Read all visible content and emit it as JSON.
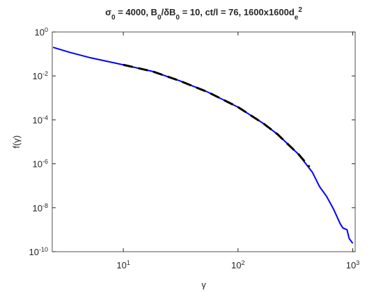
{
  "chart_data": {
    "type": "line",
    "title": [
      {
        "text": "σ"
      },
      {
        "text": "0",
        "shift": "sub"
      },
      {
        "text": " = 4000, B"
      },
      {
        "text": "0",
        "shift": "sub"
      },
      {
        "text": "/δB"
      },
      {
        "text": "0",
        "shift": "sub"
      },
      {
        "text": " = 10, ct/l = 76, 1600x1600d"
      },
      {
        "text": "e",
        "shift": "sub"
      },
      {
        "text": "2",
        "shift": "super"
      }
    ],
    "x_label": "γ",
    "y_label": "f(γ)",
    "log_x": true,
    "log_y": true,
    "xlim": [
      2.4,
      1050
    ],
    "ylim": [
      1e-10,
      1
    ],
    "xticks": [
      {
        "value": 10,
        "label": "10^1"
      },
      {
        "value": 100,
        "label": "10^2"
      },
      {
        "value": 1000,
        "label": "10^3"
      }
    ],
    "yticks": [
      {
        "value": 1e-10,
        "label": "10^-10"
      },
      {
        "value": 1e-08,
        "label": "10^-8"
      },
      {
        "value": 1e-06,
        "label": "10^-6"
      },
      {
        "value": 0.0001,
        "label": "10^-4"
      },
      {
        "value": 0.01,
        "label": "10^-2"
      },
      {
        "value": 1,
        "label": "10^0"
      }
    ],
    "series": [
      {
        "color": "#0000ff",
        "dash": false,
        "x": [
          2.44,
          3.37,
          5.1,
          10,
          18,
          31,
          55,
          100,
          168,
          221,
          337,
          445,
          512,
          589,
          677,
          776,
          820,
          891,
          930,
          1000
        ],
        "values": [
          0.2,
          0.12,
          0.068,
          0.032,
          0.016,
          0.006,
          0.0018,
          0.00038,
          6.6e-05,
          2.2e-05,
          2.7e-06,
          4.1e-07,
          9.4e-08,
          3.4e-08,
          9.1e-09,
          1.9e-09,
          1.2e-09,
          1e-09,
          4e-10,
          2.4e-10
        ]
      },
      {
        "color": "#000000",
        "dash": true,
        "x": [
          10,
          18,
          31,
          55,
          100,
          168,
          221,
          337,
          420
        ],
        "values": [
          0.032,
          0.016,
          0.006,
          0.0018,
          0.00038,
          6.6e-05,
          2.2e-05,
          2.7e-06,
          7.2e-07
        ]
      }
    ]
  }
}
